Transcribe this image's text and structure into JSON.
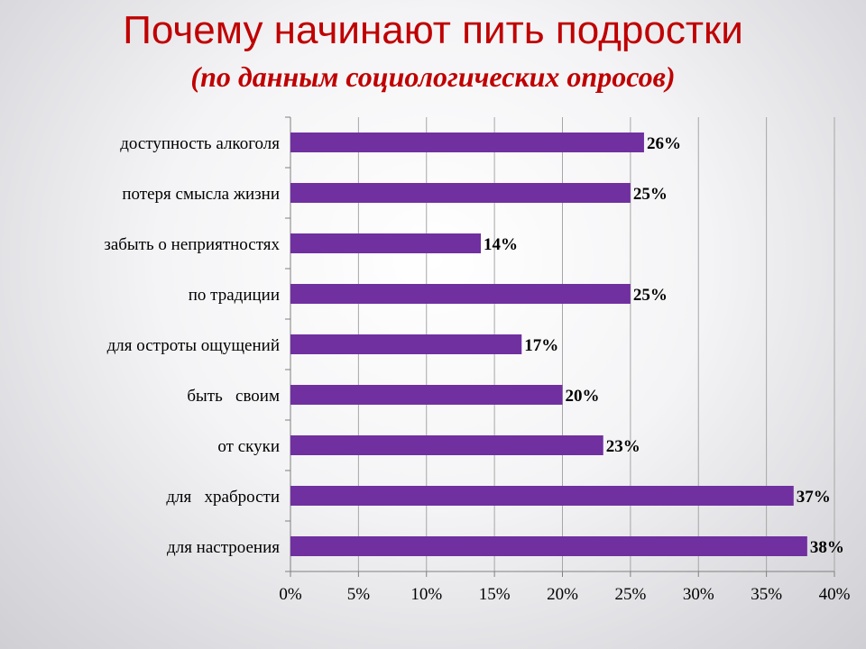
{
  "title": "Почему начинают пить подростки",
  "subtitle": "(по данным социологических опросов)",
  "colors": {
    "title": "#c00000",
    "bar": "#7030a0",
    "grid": "#a6a6a6"
  },
  "chart_data": {
    "type": "bar",
    "orientation": "horizontal",
    "categories": [
      "доступность алкоголя",
      "потеря смысла жизни",
      "забыть о неприятностях",
      "по традиции",
      "для остроты ощущений",
      "быть   своим",
      "от скуки",
      "для   храбрости",
      "для настроения"
    ],
    "values": [
      0.26,
      0.25,
      0.14,
      0.25,
      0.17,
      0.2,
      0.23,
      0.37,
      0.38
    ],
    "data_labels": [
      "26%",
      "25%",
      "14%",
      "25%",
      "17%",
      "20%",
      "23%",
      "37%",
      "38%"
    ],
    "xlim": [
      0,
      0.4
    ],
    "x_ticks": [
      0,
      0.05,
      0.1,
      0.15,
      0.2,
      0.25,
      0.3,
      0.35,
      0.4
    ],
    "x_tick_labels": [
      "0%",
      "5%",
      "10%",
      "15%",
      "20%",
      "25%",
      "30%",
      "35%",
      "40%"
    ],
    "grid": true,
    "legend": false
  }
}
